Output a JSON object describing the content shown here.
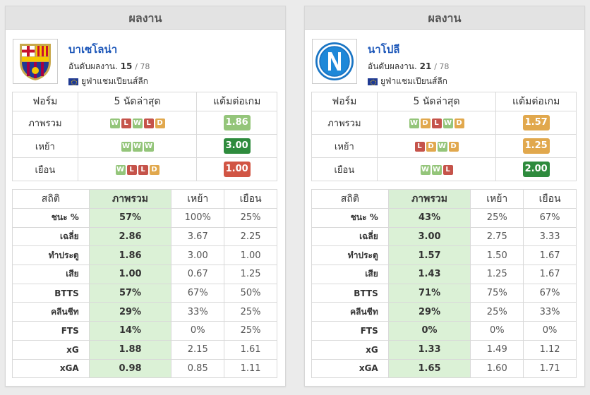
{
  "teams": [
    {
      "header": "ผลงาน",
      "name": "บาเซโลน่า",
      "logo_icon": "barcelona-crest-icon",
      "rank_label": "อันดับผลงาน.",
      "rank": "15",
      "rank_total": "/ 78",
      "league": "ยูฟ่าแชมเปียนส์ลีก",
      "form_headers": [
        "ฟอร์ม",
        "5 นัดล่าสุด",
        "แต้มต่อเกม"
      ],
      "form_rows": [
        {
          "label": "ภาพรวม",
          "results": [
            "W",
            "L",
            "W",
            "L",
            "D"
          ],
          "ppg": "1.86",
          "ppg_color": "#94c57a"
        },
        {
          "label": "เหย้า",
          "results": [
            "W",
            "W",
            "W"
          ],
          "ppg": "3.00",
          "ppg_color": "#2e8b3d"
        },
        {
          "label": "เยือน",
          "results": [
            "W",
            "L",
            "L",
            "D"
          ],
          "ppg": "1.00",
          "ppg_color": "#d15544"
        }
      ],
      "stat_headers": [
        "สถิติ",
        "ภาพรวม",
        "เหย้า",
        "เยือน"
      ],
      "stat_rows": [
        {
          "label": "ชนะ %",
          "overall": "57%",
          "home": "100%",
          "away": "25%"
        },
        {
          "label": "เฉลี่ย",
          "overall": "2.86",
          "home": "3.67",
          "away": "2.25"
        },
        {
          "label": "ทำประตู",
          "overall": "1.86",
          "home": "3.00",
          "away": "1.00"
        },
        {
          "label": "เสีย",
          "overall": "1.00",
          "home": "0.67",
          "away": "1.25"
        },
        {
          "label": "BTTS",
          "overall": "57%",
          "home": "67%",
          "away": "50%"
        },
        {
          "label": "คลีนชีท",
          "overall": "29%",
          "home": "33%",
          "away": "25%"
        },
        {
          "label": "FTS",
          "overall": "14%",
          "home": "0%",
          "away": "25%"
        },
        {
          "label": "xG",
          "overall": "1.88",
          "home": "2.15",
          "away": "1.61"
        },
        {
          "label": "xGA",
          "overall": "0.98",
          "home": "0.85",
          "away": "1.11"
        }
      ]
    },
    {
      "header": "ผลงาน",
      "name": "นาโปลี",
      "logo_icon": "napoli-crest-icon",
      "rank_label": "อันดับผลงาน.",
      "rank": "21",
      "rank_total": "/ 78",
      "league": "ยูฟ่าแชมเปียนส์ลีก",
      "form_headers": [
        "ฟอร์ม",
        "5 นัดล่าสุด",
        "แต้มต่อเกม"
      ],
      "form_rows": [
        {
          "label": "ภาพรวม",
          "results": [
            "W",
            "D",
            "L",
            "W",
            "D"
          ],
          "ppg": "1.57",
          "ppg_color": "#e1a84d"
        },
        {
          "label": "เหย้า",
          "results": [
            "L",
            "D",
            "W",
            "D"
          ],
          "ppg": "1.25",
          "ppg_color": "#e1a84d"
        },
        {
          "label": "เยือน",
          "results": [
            "W",
            "W",
            "L"
          ],
          "ppg": "2.00",
          "ppg_color": "#2e8b3d"
        }
      ],
      "stat_headers": [
        "สถิติ",
        "ภาพรวม",
        "เหย้า",
        "เยือน"
      ],
      "stat_rows": [
        {
          "label": "ชนะ %",
          "overall": "43%",
          "home": "25%",
          "away": "67%"
        },
        {
          "label": "เฉลี่ย",
          "overall": "3.00",
          "home": "2.75",
          "away": "3.33"
        },
        {
          "label": "ทำประตู",
          "overall": "1.57",
          "home": "1.50",
          "away": "1.67"
        },
        {
          "label": "เสีย",
          "overall": "1.43",
          "home": "1.25",
          "away": "1.67"
        },
        {
          "label": "BTTS",
          "overall": "71%",
          "home": "75%",
          "away": "67%"
        },
        {
          "label": "คลีนชีท",
          "overall": "29%",
          "home": "25%",
          "away": "33%"
        },
        {
          "label": "FTS",
          "overall": "0%",
          "home": "0%",
          "away": "0%"
        },
        {
          "label": "xG",
          "overall": "1.33",
          "home": "1.49",
          "away": "1.12"
        },
        {
          "label": "xGA",
          "overall": "1.65",
          "home": "1.60",
          "away": "1.71"
        }
      ]
    }
  ],
  "colors": {
    "win": "#94c57a",
    "loss": "#c5534a",
    "draw": "#e1a84d",
    "link": "#1a55b8",
    "highlight": "#dbf1d6"
  }
}
